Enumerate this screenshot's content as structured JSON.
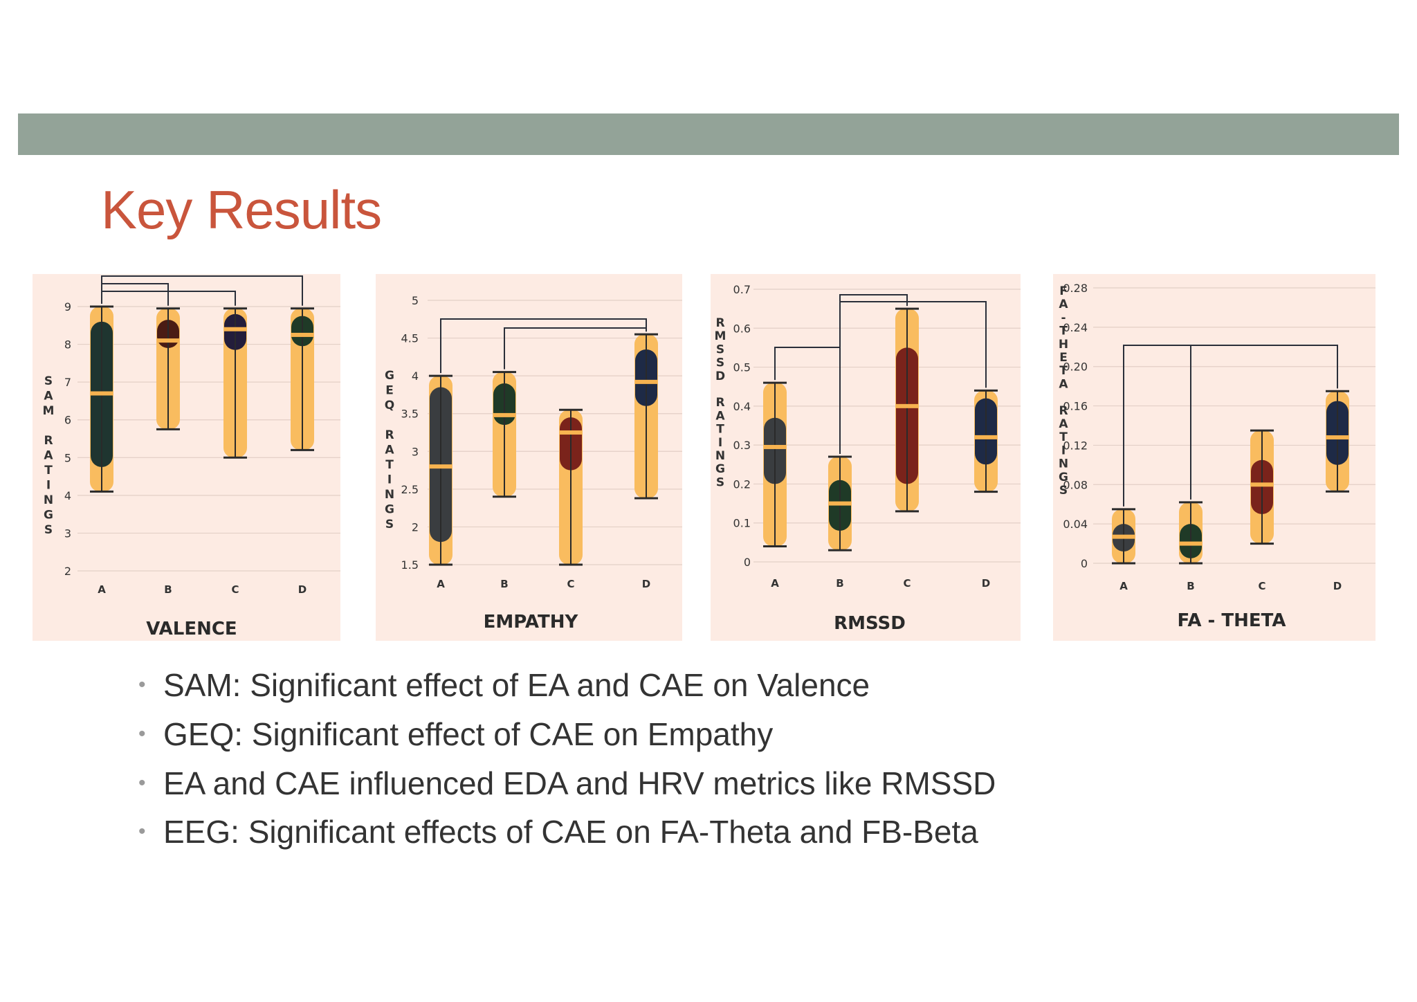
{
  "slide": {
    "title": "Key Results",
    "bullets": [
      "SAM: Significant effect of EA and CAE on Valence",
      "GEQ: Significant effect of CAE on Empathy",
      "EA and CAE influenced EDA and HRV metrics like RMSSD",
      "EEG: Significant effects of CAE on FA-Theta and FB-Beta"
    ]
  },
  "colors": {
    "panel_bg": "#fdebe3",
    "header_bar": "#93a398",
    "title": "#c9553c",
    "whisker_band": "#f9bc5f",
    "median": "#f7b350",
    "box_colors": {
      "charcoal": "#3a3d40",
      "green": "#1f3a27",
      "brown": "#4a1c14",
      "navy": "#1e2a46",
      "maroon": "#7a231b",
      "purple": "#231d3b"
    }
  },
  "chart_data": [
    {
      "type": "box",
      "title": "VALENCE",
      "ylabel": "SAM RATINGS",
      "yticks": [
        2,
        3,
        4,
        5,
        6,
        7,
        8,
        9
      ],
      "ylim": [
        1.5,
        9.3
      ],
      "categories": [
        "A",
        "B",
        "C",
        "D"
      ],
      "boxes": [
        {
          "category": "A",
          "min": 4.1,
          "q1": 4.75,
          "median": 6.7,
          "q3": 8.6,
          "max": 9.0,
          "color": "charcoal_green"
        },
        {
          "category": "B",
          "min": 5.75,
          "q1": 7.9,
          "median": 8.1,
          "q3": 8.65,
          "max": 8.95,
          "color": "brown"
        },
        {
          "category": "C",
          "min": 5.0,
          "q1": 7.85,
          "median": 8.4,
          "q3": 8.8,
          "max": 8.95,
          "color": "purple"
        },
        {
          "category": "D",
          "min": 5.2,
          "q1": 7.95,
          "median": 8.25,
          "q3": 8.75,
          "max": 8.95,
          "color": "green"
        }
      ],
      "significance": [
        [
          "A",
          "D"
        ],
        [
          "A",
          "B"
        ],
        [
          "A",
          "C"
        ]
      ]
    },
    {
      "type": "box",
      "title": "EMPATHY",
      "ylabel": "GEQ RATINGS",
      "yticks": [
        1.5,
        2,
        2.5,
        3,
        3.5,
        4,
        4.5,
        5
      ],
      "ylim": [
        1.3,
        5.2
      ],
      "categories": [
        "A",
        "B",
        "C",
        "D"
      ],
      "boxes": [
        {
          "category": "A",
          "min": 1.5,
          "q1": 1.8,
          "median": 2.8,
          "q3": 3.85,
          "max": 4.0,
          "color": "charcoal"
        },
        {
          "category": "B",
          "min": 2.4,
          "q1": 3.35,
          "median": 3.48,
          "q3": 3.9,
          "max": 4.05,
          "color": "green"
        },
        {
          "category": "C",
          "min": 1.5,
          "q1": 2.75,
          "median": 3.25,
          "q3": 3.45,
          "max": 3.55,
          "color": "maroon"
        },
        {
          "category": "D",
          "min": 2.38,
          "q1": 3.6,
          "median": 3.92,
          "q3": 4.35,
          "max": 4.55,
          "color": "navy"
        }
      ],
      "significance": [
        [
          "A",
          "D"
        ],
        [
          "B",
          "D"
        ]
      ]
    },
    {
      "type": "box",
      "title": "RMSSD",
      "ylabel": "RMSSD RATINGS",
      "yticks": [
        0,
        0.1,
        0.2,
        0.3,
        0.4,
        0.5,
        0.6,
        0.7
      ],
      "ylim": [
        -0.05,
        0.72
      ],
      "categories": [
        "A",
        "B",
        "C",
        "D"
      ],
      "boxes": [
        {
          "category": "A",
          "min": 0.04,
          "q1": 0.2,
          "median": 0.295,
          "q3": 0.37,
          "max": 0.46,
          "color": "charcoal"
        },
        {
          "category": "B",
          "min": 0.03,
          "q1": 0.08,
          "median": 0.15,
          "q3": 0.21,
          "max": 0.27,
          "color": "green"
        },
        {
          "category": "C",
          "min": 0.13,
          "q1": 0.2,
          "median": 0.4,
          "q3": 0.55,
          "max": 0.65,
          "color": "maroon"
        },
        {
          "category": "D",
          "min": 0.18,
          "q1": 0.25,
          "median": 0.32,
          "q3": 0.42,
          "max": 0.44,
          "color": "navy"
        }
      ],
      "significance": [
        [
          "A",
          "B"
        ],
        [
          "B",
          "D"
        ],
        [
          "B",
          "C"
        ]
      ]
    },
    {
      "type": "box",
      "title": "FA - THETA",
      "ylabel": "FA-THETA RATINGS",
      "yticks": [
        0,
        0.04,
        0.08,
        0.12,
        0.16,
        0.2,
        0.24,
        0.28
      ],
      "yticklabels": [
        "0",
        "0.04",
        "0.08",
        "0.12",
        "0.16",
        "0.20",
        "0.24",
        "0.28"
      ],
      "ylim": [
        -0.01,
        0.29
      ],
      "categories": [
        "A",
        "B",
        "C",
        "D"
      ],
      "boxes": [
        {
          "category": "A",
          "min": 0.0,
          "q1": 0.012,
          "median": 0.027,
          "q3": 0.04,
          "max": 0.055,
          "color": "charcoal"
        },
        {
          "category": "B",
          "min": 0.0,
          "q1": 0.005,
          "median": 0.02,
          "q3": 0.04,
          "max": 0.062,
          "color": "green"
        },
        {
          "category": "C",
          "min": 0.02,
          "q1": 0.05,
          "median": 0.08,
          "q3": 0.105,
          "max": 0.135,
          "color": "maroon"
        },
        {
          "category": "D",
          "min": 0.073,
          "q1": 0.1,
          "median": 0.128,
          "q3": 0.165,
          "max": 0.175,
          "color": "navy"
        }
      ],
      "significance": [
        [
          "A",
          "D"
        ],
        [
          "B",
          "D"
        ]
      ]
    }
  ]
}
